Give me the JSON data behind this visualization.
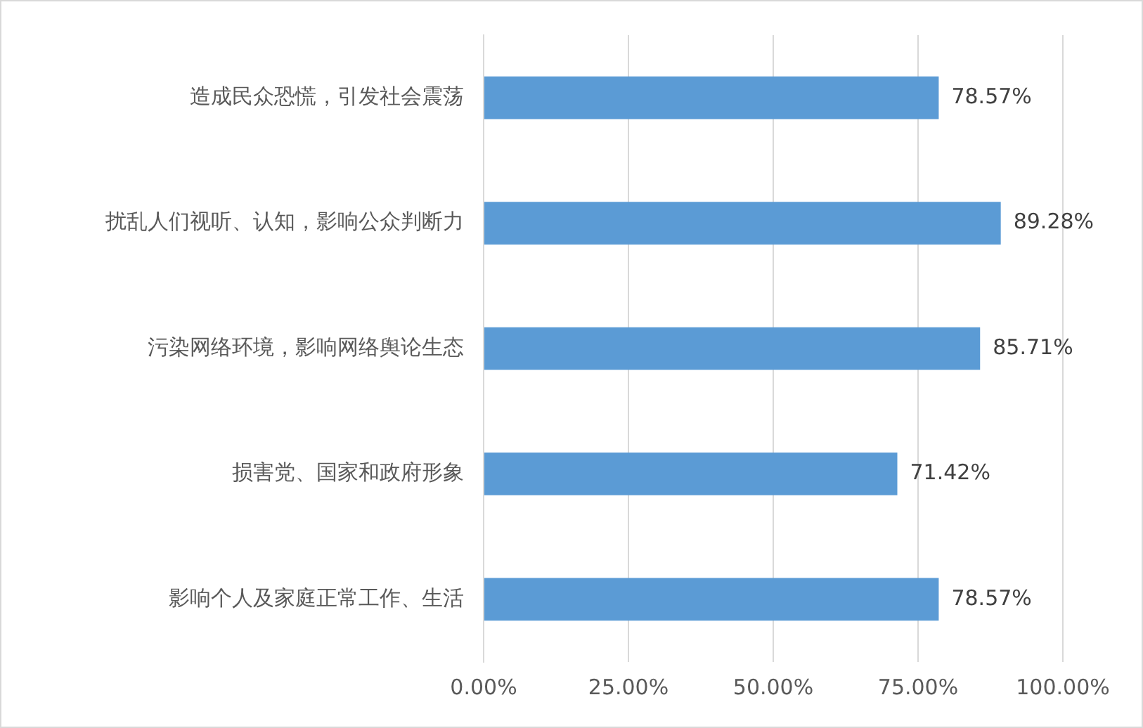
{
  "chart_data": {
    "type": "bar",
    "orientation": "horizontal",
    "categories": [
      "造成民众恐慌，引发社会震荡",
      "扰乱人们视听、认知，影响公众判断力",
      "污染网络环境，影响网络舆论生态",
      "损害党、国家和政府形象",
      "影响个人及家庭正常工作、生活"
    ],
    "values": [
      78.57,
      89.28,
      85.71,
      71.42,
      78.57
    ],
    "value_labels": [
      "78.57%",
      "89.28%",
      "85.71%",
      "71.42%",
      "78.57%"
    ],
    "color": "#5b9bd5",
    "xlim": [
      0,
      100
    ],
    "xticks": [
      {
        "value": 0,
        "label": "0.00%"
      },
      {
        "value": 25,
        "label": "25.00%"
      },
      {
        "value": 50,
        "label": "50.00%"
      },
      {
        "value": 75,
        "label": "75.00%"
      },
      {
        "value": 100,
        "label": "100.00%"
      }
    ],
    "grid": "x",
    "legend": false
  }
}
